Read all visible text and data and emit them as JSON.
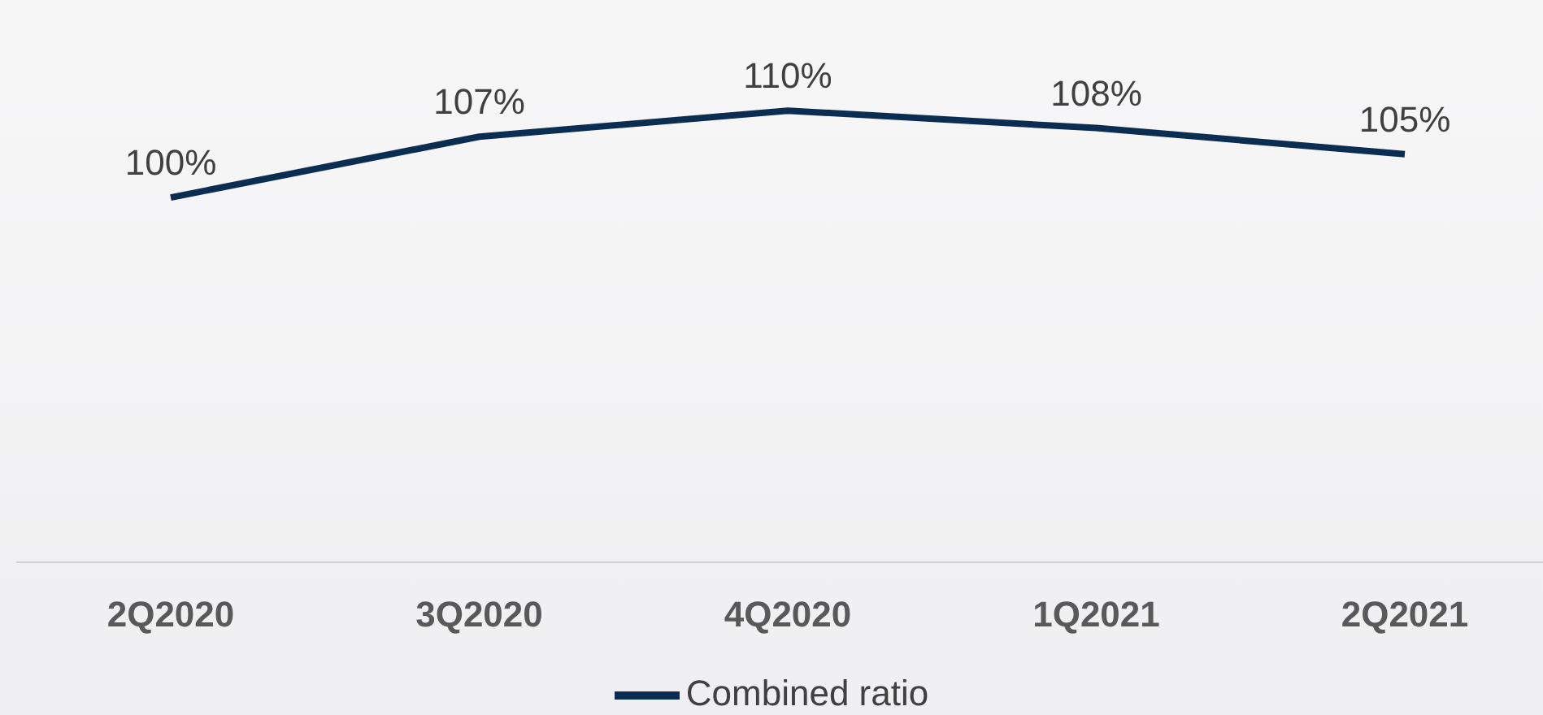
{
  "chart_data": {
    "type": "line",
    "categories": [
      "2Q2020",
      "3Q2020",
      "4Q2020",
      "1Q2021",
      "2Q2021"
    ],
    "series": [
      {
        "name": "Combined ratio",
        "color": "#0b2d52",
        "values": [
          100,
          107,
          110,
          108,
          105
        ],
        "value_labels": [
          "100%",
          "107%",
          "110%",
          "108%",
          "105%"
        ]
      }
    ],
    "grid": false,
    "legend": "bottom",
    "marker": "none",
    "line_style": "solid",
    "tick_labels": "x"
  }
}
